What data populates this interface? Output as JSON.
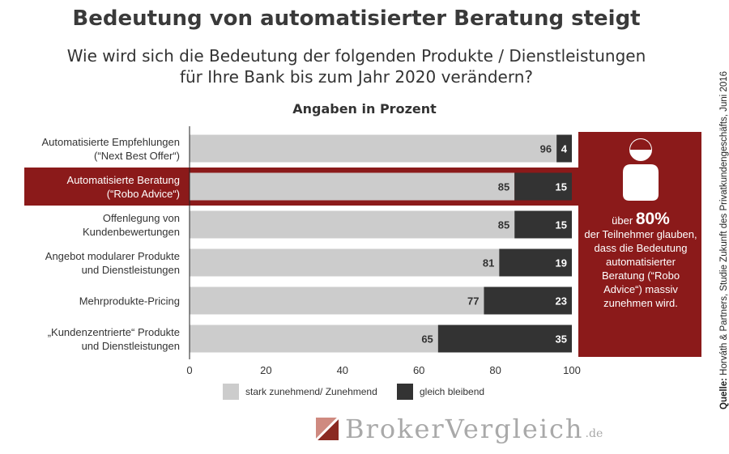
{
  "title": "Bedeutung von automatisierter Beratung steigt",
  "subtitle_line1": "Wie wird sich die Bedeutung der folgenden Produkte / Dienstleistungen",
  "subtitle_line2": "für Ihre Bank bis zum Jahr 2020 verändern?",
  "source_label": "Quelle:",
  "source_text": "Horváth & Partners, Studie Zukunft des Privatkundengeschäfts, Juni 2016",
  "callout": {
    "pre": "über",
    "big": "80%",
    "text": "der Teilnehmer glauben, dass die Bedeutung automatisierter Beratung (“Robo Advice“) massiv zunehmen wird."
  },
  "logo": {
    "text": "BrokerVergleich",
    "tld": ".de"
  },
  "colors": {
    "series_light": "#cccccc",
    "series_dark": "#333333",
    "highlight": "#8b1a1a"
  },
  "chart_data": {
    "type": "bar",
    "orientation": "horizontal",
    "stacked": true,
    "title": "Angaben in Prozent",
    "categories": [
      [
        "Automatisierte Empfehlungen",
        "(“Next Best Offer“)"
      ],
      [
        "Automatisierte Beratung",
        "(“Robo Advice“)"
      ],
      [
        "Offenlegung von",
        "Kundenbewertungen"
      ],
      [
        "Angebot modularer Produkte",
        "und Dienstleistungen"
      ],
      [
        "Mehrprodukte-Pricing"
      ],
      [
        "„Kundenzentrierte“ Produkte",
        "und Dienstleistungen"
      ]
    ],
    "highlighted_category_index": 1,
    "series": [
      {
        "name": "stark zunehmend/ Zunehmend",
        "values": [
          96,
          85,
          85,
          81,
          77,
          65
        ]
      },
      {
        "name": "gleich bleibend",
        "values": [
          4,
          15,
          15,
          19,
          23,
          35
        ]
      }
    ],
    "xlim": [
      0,
      100
    ],
    "xticks": [
      0,
      20,
      40,
      60,
      80,
      100
    ],
    "legend_position": "bottom"
  }
}
